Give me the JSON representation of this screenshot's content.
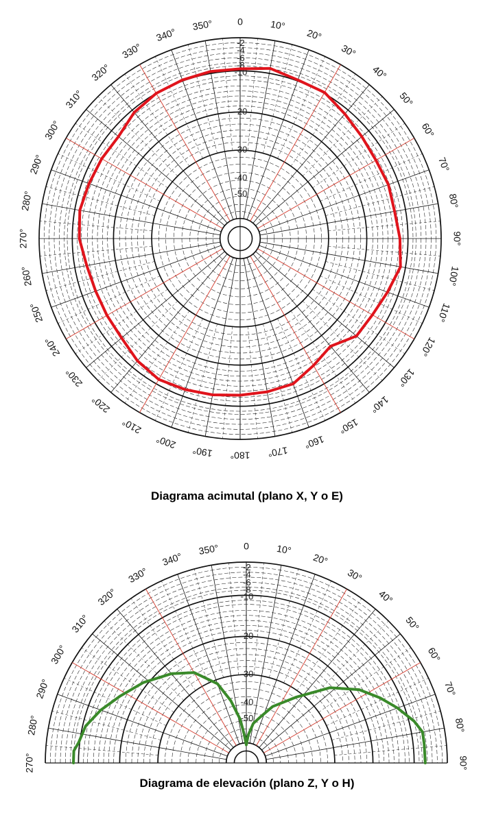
{
  "chart_data": [
    {
      "type": "polar-line",
      "title": "Diagrama acimutal (plano X, Y o E)",
      "angle_unit": "degrees",
      "angle_ticks": [
        "0",
        "10°",
        "20°",
        "30°",
        "40°",
        "50°",
        "60°",
        "70°",
        "80°",
        "90°",
        "100°",
        "110°",
        "120°",
        "130°",
        "140°",
        "150°",
        "160°",
        "170°",
        "180°",
        "190°",
        "200°",
        "210°",
        "220°",
        "230°",
        "240°",
        "250°",
        "260°",
        "270°",
        "280°",
        "290°",
        "300°",
        "310°",
        "320°",
        "330°",
        "340°",
        "350°"
      ],
      "radial_ticks": [
        "-2",
        "-4",
        "-6",
        "-8",
        "-10",
        "-20",
        "-30",
        "-40",
        "-50"
      ],
      "series_color": "#e0141c",
      "series": [
        {
          "angles": [
            0,
            10,
            20,
            30,
            40,
            50,
            60,
            70,
            80,
            90,
            100,
            110,
            120,
            130,
            140,
            150,
            160,
            170,
            180,
            190,
            200,
            210,
            220,
            230,
            240,
            250,
            260,
            270,
            280,
            290,
            300,
            310,
            320,
            330,
            340,
            350
          ],
          "radius_fraction": [
            0.845,
            0.86,
            0.84,
            0.84,
            0.81,
            0.79,
            0.78,
            0.785,
            0.78,
            0.795,
            0.81,
            0.78,
            0.76,
            0.755,
            0.7,
            0.73,
            0.77,
            0.775,
            0.78,
            0.79,
            0.8,
            0.81,
            0.795,
            0.77,
            0.765,
            0.765,
            0.775,
            0.8,
            0.81,
            0.8,
            0.795,
            0.79,
            0.82,
            0.835,
            0.84,
            0.845
          ]
        }
      ]
    },
    {
      "type": "polar-line",
      "title": "Diagrama de elevación (plano Z, Y o H)",
      "angle_unit": "degrees",
      "angle_ticks": [
        "0",
        "10°",
        "20°",
        "30°",
        "40°",
        "50°",
        "60°",
        "70°",
        "80°",
        "90°",
        "270°",
        "280°",
        "290°",
        "300°",
        "310°",
        "320°",
        "330°",
        "340°",
        "350°"
      ],
      "radial_ticks": [
        "-2",
        "-4",
        "-6",
        "-8",
        "-10",
        "-20",
        "-30",
        "-40",
        "-50"
      ],
      "series_color": "#3a8a2a",
      "series": [
        {
          "angles": [
            -90,
            -86,
            -83,
            -77,
            -70,
            -62,
            -52,
            -40,
            -30,
            -20,
            -14,
            -8,
            -4,
            0,
            4,
            10,
            17,
            25,
            37,
            48,
            57,
            64,
            70,
            76,
            80,
            84,
            90
          ],
          "radius_fraction": [
            0.86,
            0.86,
            0.84,
            0.82,
            0.77,
            0.71,
            0.65,
            0.58,
            0.52,
            0.42,
            0.32,
            0.22,
            0.14,
            0.09,
            0.14,
            0.2,
            0.24,
            0.31,
            0.41,
            0.56,
            0.67,
            0.74,
            0.8,
            0.86,
            0.89,
            0.89,
            0.89
          ]
        }
      ]
    }
  ],
  "captions": {
    "azimuth": "Diagrama acimutal (plano X, Y o E)",
    "elevation": "Diagrama de elevación (plano Z, Y o H)"
  }
}
